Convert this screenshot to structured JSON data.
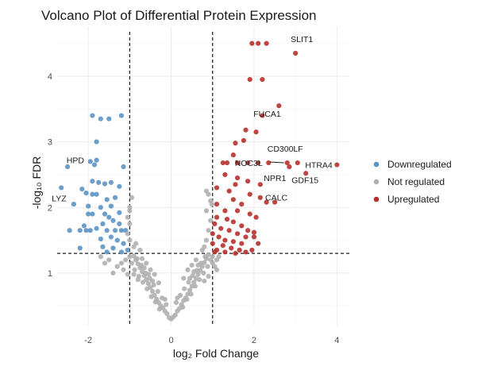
{
  "chart_data": {
    "type": "scatter",
    "title": "Volcano Plot of Differential Protein Expression",
    "xlabel": "log₂ Fold Change",
    "ylabel": "-log₁₀ FDR",
    "xlim": [
      -2.75,
      4.3
    ],
    "ylim": [
      0.2,
      4.75
    ],
    "x_ticks": [
      -2,
      0,
      2,
      4
    ],
    "y_ticks": [
      1,
      2,
      3,
      4
    ],
    "grid": true,
    "thresholds": {
      "x": [
        -1,
        1
      ],
      "y": 1.3
    },
    "legend_position": "right",
    "colors": {
      "Downregulated": "#5b93c4",
      "Not regulated": "#b0b0b0",
      "Upregulated": "#b7312c"
    },
    "series": [
      {
        "name": "Downregulated",
        "points": [
          [
            -1.9,
            3.4
          ],
          [
            -1.7,
            3.35
          ],
          [
            -1.5,
            3.35
          ],
          [
            -1.2,
            3.4
          ],
          [
            -1.8,
            3.0
          ],
          [
            -1.95,
            2.7
          ],
          [
            -1.8,
            2.72
          ],
          [
            -1.85,
            2.65
          ],
          [
            -1.15,
            2.62
          ],
          [
            -2.5,
            2.62
          ],
          [
            -1.9,
            2.4
          ],
          [
            -1.75,
            2.38
          ],
          [
            -1.6,
            2.36
          ],
          [
            -1.45,
            2.38
          ],
          [
            -1.25,
            2.32
          ],
          [
            -2.65,
            2.3
          ],
          [
            -2.15,
            2.28
          ],
          [
            -2.05,
            2.22
          ],
          [
            -1.9,
            2.2
          ],
          [
            -1.8,
            2.2
          ],
          [
            -1.55,
            2.12
          ],
          [
            -1.35,
            2.15
          ],
          [
            -2.35,
            2.05
          ],
          [
            -2.0,
            2.02
          ],
          [
            -1.7,
            2.0
          ],
          [
            -1.45,
            2.02
          ],
          [
            -1.6,
            1.9
          ],
          [
            -1.25,
            1.92
          ],
          [
            -1.9,
            1.9
          ],
          [
            -2.0,
            1.9
          ],
          [
            -1.5,
            1.85
          ],
          [
            -1.4,
            1.8
          ],
          [
            -2.1,
            1.72
          ],
          [
            -1.65,
            1.75
          ],
          [
            -1.25,
            1.75
          ],
          [
            -1.8,
            1.68
          ],
          [
            -1.1,
            1.65
          ],
          [
            -2.45,
            1.65
          ],
          [
            -2.2,
            1.65
          ],
          [
            -2.05,
            1.65
          ],
          [
            -1.95,
            1.65
          ],
          [
            -1.55,
            1.65
          ],
          [
            -1.35,
            1.65
          ],
          [
            -1.2,
            1.65
          ],
          [
            -1.45,
            1.55
          ],
          [
            -1.7,
            1.52
          ],
          [
            -1.3,
            1.5
          ],
          [
            -1.15,
            1.45
          ],
          [
            -1.65,
            1.4
          ],
          [
            -1.4,
            1.38
          ],
          [
            -2.2,
            1.38
          ],
          [
            -1.55,
            1.32
          ],
          [
            -1.2,
            1.32
          ],
          [
            -1.05,
            1.35
          ]
        ]
      },
      {
        "name": "Not regulated",
        "points": [
          [
            0.0,
            0.3
          ],
          [
            -0.05,
            0.32
          ],
          [
            0.05,
            0.33
          ],
          [
            -0.1,
            0.38
          ],
          [
            0.1,
            0.36
          ],
          [
            -0.15,
            0.42
          ],
          [
            0.15,
            0.42
          ],
          [
            -0.2,
            0.47
          ],
          [
            0.2,
            0.46
          ],
          [
            -0.25,
            0.5
          ],
          [
            0.25,
            0.52
          ],
          [
            -0.3,
            0.55
          ],
          [
            0.3,
            0.58
          ],
          [
            -0.35,
            0.6
          ],
          [
            0.35,
            0.62
          ],
          [
            -0.4,
            0.66
          ],
          [
            0.4,
            0.68
          ],
          [
            -0.45,
            0.72
          ],
          [
            0.45,
            0.74
          ],
          [
            -0.5,
            0.78
          ],
          [
            0.5,
            0.8
          ],
          [
            -0.55,
            0.84
          ],
          [
            0.55,
            0.86
          ],
          [
            -0.6,
            0.9
          ],
          [
            0.6,
            0.92
          ],
          [
            -0.65,
            0.96
          ],
          [
            0.65,
            0.98
          ],
          [
            -0.7,
            1.02
          ],
          [
            0.7,
            1.04
          ],
          [
            -0.75,
            1.08
          ],
          [
            0.75,
            1.1
          ],
          [
            -0.8,
            1.14
          ],
          [
            0.8,
            1.16
          ],
          [
            -0.85,
            1.2
          ],
          [
            0.85,
            1.22
          ],
          [
            -0.9,
            1.26
          ],
          [
            0.9,
            1.28
          ],
          [
            -0.12,
            0.52
          ],
          [
            0.12,
            0.55
          ],
          [
            -0.22,
            0.62
          ],
          [
            0.22,
            0.66
          ],
          [
            -0.32,
            0.72
          ],
          [
            0.32,
            0.76
          ],
          [
            -0.42,
            0.82
          ],
          [
            0.42,
            0.86
          ],
          [
            -0.52,
            0.92
          ],
          [
            0.52,
            0.96
          ],
          [
            -0.62,
            1.0
          ],
          [
            0.62,
            1.04
          ],
          [
            -0.72,
            1.12
          ],
          [
            0.72,
            1.15
          ],
          [
            -0.82,
            1.22
          ],
          [
            0.82,
            1.25
          ],
          [
            -0.28,
            0.45
          ],
          [
            0.28,
            0.48
          ],
          [
            -0.38,
            0.56
          ],
          [
            0.38,
            0.6
          ],
          [
            -0.48,
            0.64
          ],
          [
            0.48,
            0.68
          ],
          [
            -0.58,
            0.76
          ],
          [
            0.58,
            0.8
          ],
          [
            -0.68,
            0.86
          ],
          [
            0.68,
            0.9
          ],
          [
            -0.78,
            0.95
          ],
          [
            0.78,
            1.0
          ],
          [
            -0.88,
            1.05
          ],
          [
            0.88,
            1.1
          ],
          [
            -0.95,
            1.15
          ],
          [
            0.95,
            1.2
          ],
          [
            -0.5,
            1.05
          ],
          [
            -0.4,
            0.98
          ],
          [
            -0.6,
            1.15
          ],
          [
            -0.7,
            1.22
          ],
          [
            -0.3,
            0.85
          ],
          [
            0.4,
            1.05
          ],
          [
            0.5,
            1.12
          ],
          [
            0.6,
            1.2
          ],
          [
            0.3,
            0.92
          ],
          [
            -0.8,
            0.9
          ],
          [
            -0.9,
            0.98
          ],
          [
            0.8,
            0.88
          ],
          [
            0.9,
            0.95
          ],
          [
            -0.15,
            0.6
          ],
          [
            0.15,
            0.62
          ],
          [
            -0.45,
            0.88
          ],
          [
            0.45,
            0.92
          ],
          [
            -0.55,
            0.98
          ],
          [
            0.55,
            1.02
          ],
          [
            -0.65,
            1.08
          ],
          [
            0.65,
            1.12
          ],
          [
            -1.0,
            1.25
          ],
          [
            -1.1,
            1.2
          ],
          [
            -1.2,
            1.15
          ],
          [
            -1.3,
            1.1
          ],
          [
            -1.15,
            1.05
          ],
          [
            -1.5,
            1.2
          ],
          [
            -1.6,
            1.15
          ],
          [
            -1.4,
            1.0
          ],
          [
            -1.7,
            1.25
          ],
          [
            -1.05,
            0.98
          ],
          [
            1.0,
            1.25
          ],
          [
            1.1,
            1.2
          ],
          [
            1.05,
            1.1
          ],
          [
            1.0,
            1.15
          ],
          [
            1.1,
            1.05
          ],
          [
            1.15,
            1.25
          ],
          [
            -1.0,
            1.5
          ],
          [
            -1.05,
            1.6
          ],
          [
            -1.0,
            1.75
          ],
          [
            -1.05,
            1.85
          ],
          [
            -1.0,
            2.0
          ],
          [
            -0.95,
            2.15
          ],
          [
            -1.0,
            1.95
          ],
          [
            0.85,
            1.5
          ],
          [
            0.9,
            1.65
          ],
          [
            0.95,
            1.8
          ],
          [
            0.85,
            1.95
          ],
          [
            0.95,
            2.1
          ],
          [
            0.9,
            2.2
          ],
          [
            0.8,
            1.4
          ],
          [
            0.75,
            1.35
          ],
          [
            -0.85,
            1.45
          ],
          [
            -0.9,
            1.4
          ],
          [
            -0.75,
            1.35
          ],
          [
            0.98,
            2.05
          ],
          [
            0.85,
            2.25
          ]
        ]
      },
      {
        "name": "Upregulated",
        "points": [
          [
            1.95,
            4.5
          ],
          [
            2.1,
            4.5
          ],
          [
            2.3,
            4.5
          ],
          [
            3.0,
            4.35
          ],
          [
            1.9,
            3.95
          ],
          [
            2.2,
            3.95
          ],
          [
            2.6,
            3.55
          ],
          [
            2.2,
            3.4
          ],
          [
            1.8,
            3.18
          ],
          [
            2.05,
            3.15
          ],
          [
            1.75,
            3.02
          ],
          [
            1.55,
            2.98
          ],
          [
            1.5,
            2.8
          ],
          [
            1.25,
            2.68
          ],
          [
            1.35,
            2.68
          ],
          [
            1.6,
            2.68
          ],
          [
            1.85,
            2.68
          ],
          [
            2.1,
            2.68
          ],
          [
            2.35,
            2.68
          ],
          [
            2.8,
            2.68
          ],
          [
            3.05,
            2.68
          ],
          [
            4.0,
            2.65
          ],
          [
            2.85,
            2.62
          ],
          [
            3.25,
            2.52
          ],
          [
            1.3,
            2.5
          ],
          [
            1.6,
            2.45
          ],
          [
            1.85,
            2.4
          ],
          [
            2.15,
            2.35
          ],
          [
            1.55,
            2.35
          ],
          [
            1.1,
            2.3
          ],
          [
            1.4,
            2.25
          ],
          [
            1.9,
            2.2
          ],
          [
            2.15,
            2.15
          ],
          [
            2.3,
            2.08
          ],
          [
            2.5,
            2.08
          ],
          [
            1.5,
            2.12
          ],
          [
            1.7,
            2.05
          ],
          [
            1.1,
            2.05
          ],
          [
            1.3,
            1.95
          ],
          [
            1.6,
            1.95
          ],
          [
            1.9,
            1.9
          ],
          [
            2.05,
            1.85
          ],
          [
            1.1,
            1.85
          ],
          [
            1.35,
            1.82
          ],
          [
            1.5,
            1.78
          ],
          [
            1.7,
            1.72
          ],
          [
            1.85,
            1.65
          ],
          [
            2.0,
            1.62
          ],
          [
            1.05,
            1.75
          ],
          [
            1.2,
            1.68
          ],
          [
            1.4,
            1.65
          ],
          [
            1.6,
            1.6
          ],
          [
            1.8,
            1.55
          ],
          [
            1.15,
            1.55
          ],
          [
            1.3,
            1.5
          ],
          [
            1.5,
            1.48
          ],
          [
            1.7,
            1.45
          ],
          [
            1.0,
            1.6
          ],
          [
            1.0,
            1.45
          ],
          [
            1.25,
            1.42
          ],
          [
            1.45,
            1.38
          ],
          [
            1.65,
            1.35
          ],
          [
            1.95,
            1.35
          ],
          [
            2.0,
            1.55
          ],
          [
            1.1,
            1.35
          ],
          [
            1.3,
            1.32
          ],
          [
            1.55,
            1.3
          ],
          [
            1.05,
            1.32
          ],
          [
            1.8,
            1.32
          ],
          [
            2.1,
            1.45
          ]
        ]
      }
    ],
    "annotations": [
      {
        "label": "SLIT1",
        "x": 3.0,
        "y": 4.35
      },
      {
        "label": "FUCA1",
        "x": 2.6,
        "y": 3.55
      },
      {
        "label": "CD300LF",
        "x": 3.05,
        "y": 2.68
      },
      {
        "label": "NOC3L",
        "x": 2.8,
        "y": 2.68
      },
      {
        "label": "HTRA4",
        "x": 4.0,
        "y": 2.65
      },
      {
        "label": "NPR1",
        "x": 2.85,
        "y": 2.62
      },
      {
        "label": "GDF15",
        "x": 3.25,
        "y": 2.52
      },
      {
        "label": "CALC",
        "x": 2.5,
        "y": 2.08
      },
      {
        "label": "HPD",
        "x": -1.95,
        "y": 2.7
      },
      {
        "label": "LYZ",
        "x": -2.65,
        "y": 2.3
      }
    ]
  }
}
